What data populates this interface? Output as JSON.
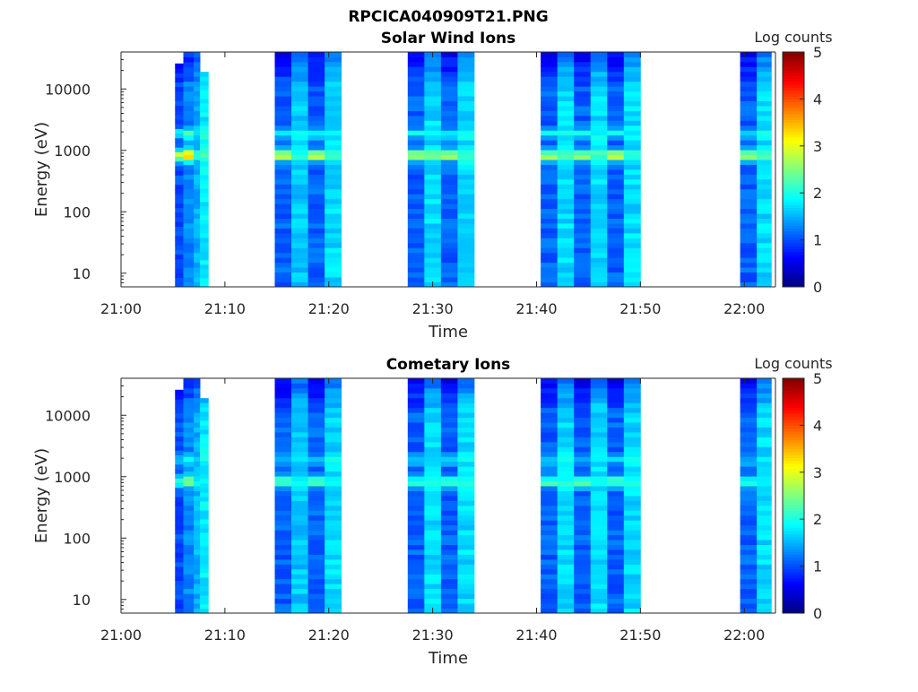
{
  "figure_title": "RPCICA040909T21.PNG",
  "chart_data": [
    {
      "type": "heatmap",
      "title": "Solar Wind Ions",
      "xlabel": "Time",
      "ylabel": "Energy (eV)",
      "x_ticks": [
        "21:00",
        "21:10",
        "21:20",
        "21:30",
        "21:40",
        "21:50",
        "22:00"
      ],
      "x_range_minutes": [
        0,
        63
      ],
      "y_ticks": [
        {
          "value": 10,
          "label": "10"
        },
        {
          "value": 100,
          "label": "100"
        },
        {
          "value": 1000,
          "label": "1000"
        },
        {
          "value": 10000,
          "label": "10000"
        }
      ],
      "y_scale": "log",
      "y_range": [
        6,
        40000
      ],
      "colorbar": {
        "label": "Log counts",
        "range": [
          0,
          5
        ],
        "ticks": [
          "0",
          "1",
          "2",
          "3",
          "4",
          "5"
        ],
        "colormap": "jet"
      },
      "blocks": [
        {
          "start": 5.2,
          "end": 6.0,
          "e_top": 26000,
          "level": 1.0,
          "peak_level": 3.0
        },
        {
          "start": 6.0,
          "end": 7.0,
          "e_top": 40000,
          "level": 1.3,
          "peak_level": 3.4
        },
        {
          "start": 7.0,
          "end": 7.6,
          "e_top": 40000,
          "level": 1.5,
          "peak_level": 2.2
        },
        {
          "start": 7.6,
          "end": 8.4,
          "e_top": 19000,
          "level": 1.8,
          "peak_level": 2.2
        },
        {
          "start": 14.8,
          "end": 16.4,
          "e_top": 40000,
          "level": 1.1,
          "peak_level": 3.0
        },
        {
          "start": 16.4,
          "end": 18.0,
          "e_top": 40000,
          "level": 1.6,
          "peak_level": 2.2
        },
        {
          "start": 18.0,
          "end": 19.6,
          "e_top": 40000,
          "level": 1.1,
          "peak_level": 3.0
        },
        {
          "start": 19.6,
          "end": 21.2,
          "e_top": 40000,
          "level": 1.7,
          "peak_level": 2.2
        },
        {
          "start": 27.6,
          "end": 29.2,
          "e_top": 40000,
          "level": 1.1,
          "peak_level": 2.9
        },
        {
          "start": 29.2,
          "end": 30.8,
          "e_top": 40000,
          "level": 1.7,
          "peak_level": 2.4
        },
        {
          "start": 30.8,
          "end": 32.4,
          "e_top": 40000,
          "level": 1.1,
          "peak_level": 2.9
        },
        {
          "start": 32.4,
          "end": 34.0,
          "e_top": 40000,
          "level": 1.7,
          "peak_level": 2.2
        },
        {
          "start": 40.4,
          "end": 42.0,
          "e_top": 40000,
          "level": 1.1,
          "peak_level": 2.8
        },
        {
          "start": 42.0,
          "end": 43.6,
          "e_top": 40000,
          "level": 1.7,
          "peak_level": 2.2
        },
        {
          "start": 43.6,
          "end": 45.2,
          "e_top": 40000,
          "level": 1.1,
          "peak_level": 2.8
        },
        {
          "start": 45.2,
          "end": 46.8,
          "e_top": 40000,
          "level": 1.7,
          "peak_level": 2.2
        },
        {
          "start": 46.8,
          "end": 48.4,
          "e_top": 40000,
          "level": 1.1,
          "peak_level": 2.8
        },
        {
          "start": 48.4,
          "end": 50.0,
          "e_top": 40000,
          "level": 1.7,
          "peak_level": 2.2
        },
        {
          "start": 59.6,
          "end": 61.2,
          "e_top": 40000,
          "level": 1.1,
          "peak_level": 2.7
        },
        {
          "start": 61.2,
          "end": 62.6,
          "e_top": 40000,
          "level": 1.7,
          "peak_level": 2.2
        }
      ]
    },
    {
      "type": "heatmap",
      "title": "Cometary Ions",
      "xlabel": "Time",
      "ylabel": "Energy (eV)",
      "x_ticks": [
        "21:00",
        "21:10",
        "21:20",
        "21:30",
        "21:40",
        "21:50",
        "22:00"
      ],
      "x_range_minutes": [
        0,
        63
      ],
      "y_ticks": [
        {
          "value": 10,
          "label": "10"
        },
        {
          "value": 100,
          "label": "100"
        },
        {
          "value": 1000,
          "label": "1000"
        },
        {
          "value": 10000,
          "label": "10000"
        }
      ],
      "y_scale": "log",
      "y_range": [
        6,
        40000
      ],
      "colorbar": {
        "label": "Log counts",
        "range": [
          0,
          5
        ],
        "ticks": [
          "0",
          "1",
          "2",
          "3",
          "4",
          "5"
        ],
        "colormap": "jet"
      },
      "blocks": [
        {
          "start": 5.2,
          "end": 6.0,
          "e_top": 26000,
          "level": 1.0,
          "peak_level": 2.2
        },
        {
          "start": 6.0,
          "end": 7.0,
          "e_top": 40000,
          "level": 1.3,
          "peak_level": 2.6
        },
        {
          "start": 7.0,
          "end": 7.6,
          "e_top": 40000,
          "level": 1.5,
          "peak_level": 2.0
        },
        {
          "start": 7.6,
          "end": 8.4,
          "e_top": 19000,
          "level": 1.8,
          "peak_level": 2.0
        },
        {
          "start": 14.8,
          "end": 16.4,
          "e_top": 40000,
          "level": 1.1,
          "peak_level": 2.4
        },
        {
          "start": 16.4,
          "end": 18.0,
          "e_top": 40000,
          "level": 1.6,
          "peak_level": 2.0
        },
        {
          "start": 18.0,
          "end": 19.6,
          "e_top": 40000,
          "level": 1.1,
          "peak_level": 2.4
        },
        {
          "start": 19.6,
          "end": 21.2,
          "e_top": 40000,
          "level": 1.7,
          "peak_level": 2.0
        },
        {
          "start": 27.6,
          "end": 29.2,
          "e_top": 40000,
          "level": 1.1,
          "peak_level": 2.3
        },
        {
          "start": 29.2,
          "end": 30.8,
          "e_top": 40000,
          "level": 1.7,
          "peak_level": 2.0
        },
        {
          "start": 30.8,
          "end": 32.4,
          "e_top": 40000,
          "level": 1.1,
          "peak_level": 2.3
        },
        {
          "start": 32.4,
          "end": 34.0,
          "e_top": 40000,
          "level": 1.7,
          "peak_level": 2.0
        },
        {
          "start": 40.4,
          "end": 42.0,
          "e_top": 40000,
          "level": 1.1,
          "peak_level": 2.3
        },
        {
          "start": 42.0,
          "end": 43.6,
          "e_top": 40000,
          "level": 1.7,
          "peak_level": 2.0
        },
        {
          "start": 43.6,
          "end": 45.2,
          "e_top": 40000,
          "level": 1.1,
          "peak_level": 2.3
        },
        {
          "start": 45.2,
          "end": 46.8,
          "e_top": 40000,
          "level": 1.7,
          "peak_level": 2.0
        },
        {
          "start": 46.8,
          "end": 48.4,
          "e_top": 40000,
          "level": 1.1,
          "peak_level": 2.3
        },
        {
          "start": 48.4,
          "end": 50.0,
          "e_top": 40000,
          "level": 1.7,
          "peak_level": 2.0
        },
        {
          "start": 59.6,
          "end": 61.2,
          "e_top": 40000,
          "level": 1.1,
          "peak_level": 2.0
        },
        {
          "start": 61.2,
          "end": 62.6,
          "e_top": 40000,
          "level": 1.7,
          "peak_level": 2.0
        }
      ]
    }
  ]
}
